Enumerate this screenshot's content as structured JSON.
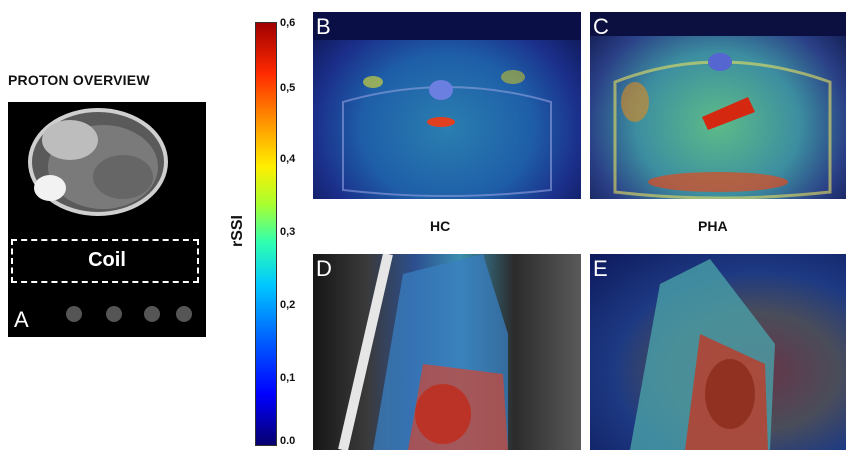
{
  "overview_title": "PROTON OVERVIEW",
  "coil_label": "Coil",
  "panel_labels": {
    "a": "A",
    "b": "B",
    "c": "C",
    "d": "D",
    "e": "E"
  },
  "colorbar": {
    "label": "rSSI",
    "ticks": [
      "0,6",
      "0,5",
      "0,4",
      "0,3",
      "0,2",
      "0,1",
      "0.0"
    ]
  },
  "captions": {
    "hc": "HC",
    "pha": "PHA"
  }
}
